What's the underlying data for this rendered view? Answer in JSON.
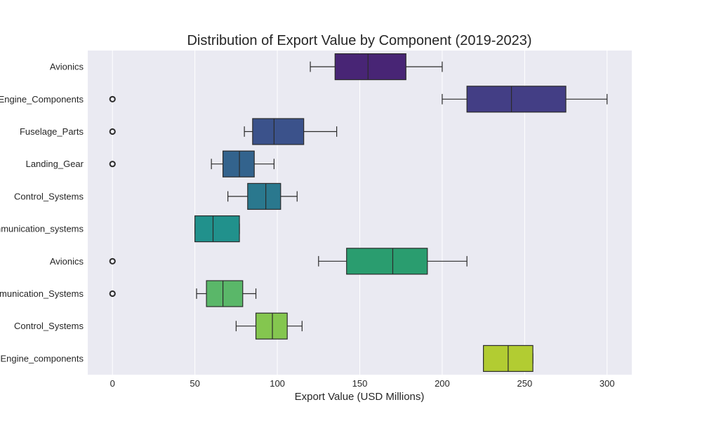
{
  "chart_data": {
    "type": "boxplot",
    "orientation": "horizontal",
    "title": "Distribution of Export Value by Component (2019-2023)",
    "xlabel": "Export Value (USD Millions)",
    "ylabel": "",
    "xlim": [
      -15,
      315
    ],
    "xticks": [
      0,
      50,
      100,
      150,
      200,
      250,
      300
    ],
    "grid": "x-major",
    "legend": "none",
    "background": "#eaeaf2",
    "categories": [
      {
        "label": "Avionics",
        "whisker_low": 120,
        "q1": 135,
        "median": 155,
        "q3": 178,
        "whisker_high": 200,
        "outliers": [],
        "color": "#482575"
      },
      {
        "label": "Engine_Components",
        "whisker_low": 200,
        "q1": 215,
        "median": 242,
        "q3": 275,
        "whisker_high": 300,
        "outliers": [
          0
        ],
        "color": "#433e85"
      },
      {
        "label": "Fuselage_Parts",
        "whisker_low": 80,
        "q1": 85,
        "median": 98,
        "q3": 116,
        "whisker_high": 136,
        "outliers": [
          0
        ],
        "color": "#3b528b"
      },
      {
        "label": "Landing_Gear",
        "whisker_low": 60,
        "q1": 67,
        "median": 77,
        "q3": 86,
        "whisker_high": 98,
        "outliers": [
          0
        ],
        "color": "#33638d"
      },
      {
        "label": "Control_Systems",
        "whisker_low": 70,
        "q1": 82,
        "median": 93,
        "q3": 102,
        "whisker_high": 112,
        "outliers": [],
        "color": "#2a788e"
      },
      {
        "label": "Communication_systems",
        "whisker_low": 50,
        "q1": 50,
        "median": 61,
        "q3": 77,
        "whisker_high": 77,
        "outliers": [],
        "color": "#21918c"
      },
      {
        "label": "Avionics",
        "whisker_low": 125,
        "q1": 142,
        "median": 170,
        "q3": 191,
        "whisker_high": 215,
        "outliers": [
          0
        ],
        "color": "#2a9d6f"
      },
      {
        "label": "Communication_Systems",
        "whisker_low": 51,
        "q1": 57,
        "median": 67,
        "q3": 79,
        "whisker_high": 87,
        "outliers": [
          0
        ],
        "color": "#5ab769"
      },
      {
        "label": "Control_Systems",
        "whisker_low": 75,
        "q1": 87,
        "median": 97,
        "q3": 106,
        "whisker_high": 115,
        "outliers": [],
        "color": "#84c64f"
      },
      {
        "label": "Engine_components",
        "whisker_low": 225,
        "q1": 225,
        "median": 240,
        "q3": 255,
        "whisker_high": 255,
        "outliers": [],
        "color": "#b2cc32"
      }
    ]
  }
}
